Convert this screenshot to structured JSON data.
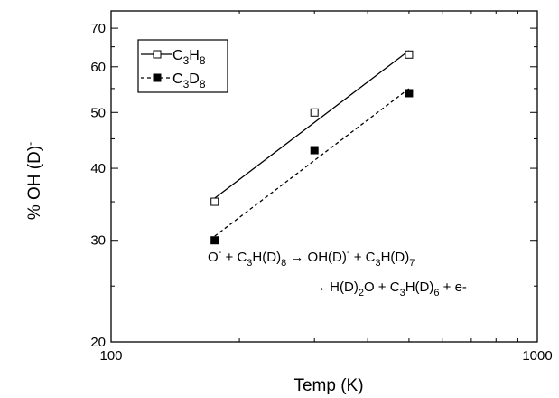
{
  "chart_data": {
    "type": "scatter",
    "xlabel": "Temp (K)",
    "ylabel_main": "% OH (D)",
    "ylabel_sup": "-",
    "x_scale": "log",
    "y_scale": "log",
    "xlim": [
      100,
      1000
    ],
    "ylim": [
      20,
      75
    ],
    "x_ticks": [
      100,
      1000
    ],
    "x_tick_labels": [
      "100",
      "1000"
    ],
    "y_ticks": [
      20,
      30,
      40,
      50,
      60,
      70
    ],
    "y_tick_labels": [
      "20",
      "30",
      "40",
      "50",
      "60",
      "70"
    ],
    "legend_position": "top-left",
    "series": [
      {
        "name": "C3H8",
        "legend_parts": [
          [
            "C",
            ""
          ],
          [
            "3",
            "sub"
          ],
          [
            "H",
            ""
          ],
          [
            "8",
            "sub"
          ]
        ],
        "marker": "open-square",
        "line": "solid",
        "x": [
          175,
          300,
          500
        ],
        "y": [
          35,
          50,
          63
        ],
        "fit": {
          "x": [
            175,
            500
          ],
          "y": [
            35.5,
            64
          ]
        }
      },
      {
        "name": "C3D8",
        "legend_parts": [
          [
            "C",
            ""
          ],
          [
            "3",
            "sub"
          ],
          [
            "D",
            ""
          ],
          [
            "8",
            "sub"
          ]
        ],
        "marker": "filled-square",
        "line": "dashed",
        "x": [
          175,
          300,
          500
        ],
        "y": [
          30,
          43,
          54
        ],
        "fit": {
          "x": [
            175,
            500
          ],
          "y": [
            30.5,
            55
          ]
        }
      }
    ],
    "annotation": {
      "line1": [
        [
          "O",
          ""
        ],
        [
          "-",
          "sup"
        ],
        [
          " + C",
          ""
        ],
        [
          "3",
          "sub"
        ],
        [
          "H(D)",
          ""
        ],
        [
          "8",
          "sub"
        ],
        [
          " → OH(D)",
          ""
        ],
        [
          "-",
          "sup"
        ],
        [
          " + C",
          ""
        ],
        [
          "3",
          "sub"
        ],
        [
          "H(D)",
          ""
        ],
        [
          "7",
          "sub"
        ]
      ],
      "line2": [
        [
          "→ H(D)",
          ""
        ],
        [
          "2",
          "sub"
        ],
        [
          "O + C",
          ""
        ],
        [
          "3",
          "sub"
        ],
        [
          "H(D)",
          ""
        ],
        [
          "6",
          "sub"
        ],
        [
          " + e-",
          ""
        ]
      ]
    }
  }
}
